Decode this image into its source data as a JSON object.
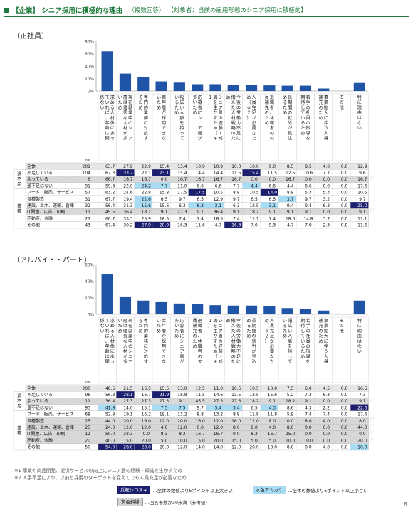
{
  "title": {
    "main": "【企業】 シニア採用に積極的な理由",
    "qtype": "（複数回答）",
    "target": "【対象者：当該の雇用形態のシニア採用に積極的】"
  },
  "sections": [
    {
      "label": "（正社員）"
    },
    {
      "label": "（アルバイト・パート）"
    }
  ],
  "chart_data": [
    {
      "type": "bar",
      "section": "（正社員）",
      "ylim": [
        0,
        80
      ],
      "yticks": [
        "80%",
        "60%",
        "40%",
        "20%",
        "0%"
      ],
      "n_label": "n=",
      "categories": [
        "求める人材像にあっていれば、年齢は関係ない",
        "現在就業中のシニア層は優秀な人材が多いため",
        "専門的業務に対応するため",
        "若年層が採用できないため",
        "幅広い人脈を持っているため",
        "応募者にシニア層が多いため",
        "シニア層の経験・知識を生かすため（※１）",
        "今後の労働力不足に備えた人材戦略のため",
        "人員充足が必要なため（※２）",
        "退職者、休職者の欠員補充のため",
        "長期間の就労が見込めるため",
        "若手の社員の指導を期待しているため",
        "事業拡大に伴う人員補充のため",
        "その他",
        "特に理由はない"
      ],
      "rows": [
        {
          "group": "",
          "label": "全体",
          "n": "201",
          "values": [
            "63.7",
            "27.9",
            "22.9",
            "15.4",
            "13.4",
            "10.9",
            "10.9",
            "10.0",
            "10.0",
            "9.0",
            "8.5",
            "8.5",
            "4.0",
            "0.0",
            "12.9"
          ]
        },
        {
          "group": "過不足",
          "label": "不足している",
          "n": "104",
          "values": [
            "67.3",
            "33.7",
            "22.1",
            "23.1",
            "15.4",
            "14.4",
            "14.4",
            "11.5",
            "15.4",
            "11.5",
            "12.5",
            "10.6",
            "7.7",
            "0.0",
            "9.6"
          ]
        },
        {
          "group": "過不足",
          "label": "余っている",
          "n": "6",
          "values": [
            "66.7",
            "16.7",
            "16.7",
            "0.0",
            "16.7",
            "16.7",
            "16.7",
            "16.7",
            "0.0",
            "0.0",
            "16.7",
            "0.0",
            "0.0",
            "0.0",
            "16.7"
          ]
        },
        {
          "group": "過不足",
          "label": "過不足はない",
          "n": "91",
          "values": [
            "59.3",
            "22.0",
            "24.2",
            "7.7",
            "11.0",
            "6.6",
            "6.6",
            "7.7",
            "4.4",
            "6.6",
            "4.4",
            "6.6",
            "0.0",
            "0.0",
            "17.6"
          ]
        },
        {
          "group": "業種",
          "label": "フード、販売、サービス",
          "n": "57",
          "values": [
            "63.2",
            "24.6",
            "22.8",
            "15.8",
            "17.5",
            "17.5",
            "10.5",
            "8.8",
            "10.5",
            "14.0",
            "8.8",
            "5.3",
            "5.3",
            "0.0",
            "10.5"
          ]
        },
        {
          "group": "業種",
          "label": "各種製造",
          "n": "31",
          "values": [
            "67.7",
            "19.4",
            "22.6",
            "6.5",
            "9.7",
            "6.5",
            "12.9",
            "9.7",
            "6.5",
            "6.5",
            "3.7",
            "9.7",
            "3.2",
            "0.0",
            "9.7"
          ]
        },
        {
          "group": "業種",
          "label": "建設、土木、運輸、倉庫",
          "n": "32",
          "values": [
            "56.4",
            "31.3",
            "15.6",
            "15.6",
            "6.3",
            "6.3",
            "3.1",
            "6.3",
            "12.5",
            "3.1",
            "9.4",
            "9.4",
            "6.3",
            "0.0",
            "25.0"
          ]
        },
        {
          "group": "業種",
          "label": "IT関連、広告、印刷",
          "n": "11",
          "values": [
            "45.5",
            "36.4",
            "18.2",
            "9.1",
            "27.3",
            "9.1",
            "36.4",
            "9.1",
            "18.2",
            "9.1",
            "9.1",
            "9.1",
            "0.0",
            "0.0",
            "9.1"
          ]
        },
        {
          "group": "業種",
          "label": "不動産、金融",
          "n": "27",
          "values": [
            "66.7",
            "33.3",
            "25.9",
            "18.5",
            "7.4",
            "7.4",
            "18.5",
            "7.4",
            "11.1",
            "7.4",
            "18.5",
            "14.8",
            "3.7",
            "0.0",
            "11.1"
          ]
        },
        {
          "group": "業種",
          "label": "その他",
          "n": "43",
          "values": [
            "67.4",
            "30.2",
            "27.9",
            "20.9",
            "16.3",
            "11.6",
            "4.7",
            "16.3",
            "7.0",
            "9.3",
            "4.7",
            "7.0",
            "2.3",
            "0.0",
            "11.6"
          ]
        }
      ],
      "highlights": {
        "dark": [
          [
            1,
            1
          ],
          [
            1,
            3
          ],
          [
            1,
            8
          ],
          [
            4,
            5
          ],
          [
            4,
            9
          ],
          [
            6,
            14
          ],
          [
            9,
            2
          ],
          [
            9,
            3
          ],
          [
            9,
            7
          ]
        ],
        "light": [
          [
            3,
            2
          ],
          [
            3,
            3
          ],
          [
            3,
            8
          ],
          [
            5,
            2
          ],
          [
            5,
            10
          ],
          [
            6,
            2
          ],
          [
            6,
            5
          ],
          [
            6,
            6
          ],
          [
            6,
            9
          ]
        ],
        "gray": [
          2,
          7
        ]
      }
    },
    {
      "type": "bar",
      "section": "（アルバイト・パート）",
      "ylim": [
        0,
        60
      ],
      "yticks": [
        "60%",
        "40%",
        "20%",
        "0%"
      ],
      "n_label": "n=",
      "categories": [
        "求める人材像にあっていれば、年齢は関係ない",
        "現在就業中のシニア層は優秀な人材が多いため",
        "専門的業務に対応するため",
        "若年層が採用できないため",
        "応募者にシニア層が多いため",
        "退職者、休職者の欠員補充のため",
        "シニア層の経験・知識を生かすため（※１）",
        "今後の労働力不足に備えた人材戦略のため",
        "長期間の就労が見込めるため",
        "人員充足が必要なため（※２）",
        "幅広い人脈を持っているため",
        "若手の社員の指導を期待しているため",
        "事業拡大に伴う人員補充のため",
        "その他",
        "特に理由はない"
      ],
      "rows": [
        {
          "group": "",
          "label": "全体",
          "n": "200",
          "values": [
            "48.5",
            "21.5",
            "16.5",
            "15.5",
            "13.0",
            "12.5",
            "11.0",
            "10.5",
            "10.5",
            "10.0",
            "7.5",
            "6.0",
            "4.5",
            "0.0",
            "16.5"
          ]
        },
        {
          "group": "過不足",
          "label": "不足している",
          "n": "96",
          "values": [
            "56.3",
            "28.1",
            "16.7",
            "21.9",
            "18.8",
            "11.5",
            "14.6",
            "13.5",
            "13.5",
            "15.6",
            "5.2",
            "7.3",
            "6.3",
            "0.0",
            "7.3"
          ]
        },
        {
          "group": "過不足",
          "label": "余っている",
          "n": "11",
          "values": [
            "36.4",
            "27.3",
            "27.3",
            "27.3",
            "9.1",
            "45.5",
            "27.3",
            "27.3",
            "18.2",
            "9.1",
            "18.2",
            "9.1",
            "0.0",
            "0.0",
            "9.1"
          ]
        },
        {
          "group": "過不足",
          "label": "過不足はない",
          "n": "93",
          "values": [
            "41.9",
            "14.0",
            "15.1",
            "7.5",
            "7.5",
            "9.7",
            "5.4",
            "5.4",
            "6.5",
            "4.3",
            "8.6",
            "4.3",
            "2.2",
            "0.0",
            "22.6"
          ]
        },
        {
          "group": "業種",
          "label": "フード、販売、サービス",
          "n": "68",
          "values": [
            "52.9",
            "19.1",
            "16.2",
            "19.1",
            "13.2",
            "8.8",
            "13.2",
            "8.8",
            "11.8",
            "11.8",
            "5.9",
            "7.4",
            "7.4",
            "0.0",
            "17.6"
          ]
        },
        {
          "group": "業種",
          "label": "各種製造",
          "n": "25",
          "values": [
            "44.0",
            "20.0",
            "16.0",
            "12.0",
            "20.0",
            "16.0",
            "12.0",
            "16.0",
            "12.0",
            "8.0",
            "0.0",
            "8.0",
            "4.0",
            "0.0",
            "8.0"
          ]
        },
        {
          "group": "業種",
          "label": "建設、土木、運輸、倉庫",
          "n": "25",
          "values": [
            "24.0",
            "12.0",
            "12.0",
            "4.0",
            "12.0",
            "0.0",
            "12.0",
            "8.0",
            "8.0",
            "4.0",
            "8.0",
            "0.0",
            "0.0",
            "0.0",
            "44.0"
          ]
        },
        {
          "group": "業種",
          "label": "IT関連、広告、印刷",
          "n": "12",
          "values": [
            "50.0",
            "33.3",
            "0.0",
            "8.3",
            "8.3",
            "16.7",
            "16.7",
            "0.0",
            "8.3",
            "16.7",
            "25.0",
            "0.0",
            "0.0",
            "0.0",
            "0.0"
          ]
        },
        {
          "group": "業種",
          "label": "不動産、金融",
          "n": "20",
          "values": [
            "40.0",
            "15.0",
            "20.0",
            "5.0",
            "10.0",
            "15.0",
            "20.0",
            "15.0",
            "5.0",
            "5.0",
            "10.0",
            "10.0",
            "0.0",
            "0.0",
            "20.0"
          ]
        },
        {
          "group": "業種",
          "label": "その他",
          "n": "50",
          "values": [
            "54.0",
            "28.0",
            "28.0",
            "20.0",
            "12.0",
            "14.0",
            "14.0",
            "12.0",
            "20.0",
            "10.0",
            "8.0",
            "0.0",
            "4.0",
            "0.0",
            "10.0"
          ]
        }
      ],
      "highlights": {
        "dark": [
          [
            1,
            1
          ],
          [
            1,
            3
          ],
          [
            3,
            14
          ],
          [
            9,
            0
          ],
          [
            9,
            1
          ],
          [
            9,
            2
          ]
        ],
        "light": [
          [
            3,
            0
          ],
          [
            3,
            3
          ],
          [
            3,
            4
          ],
          [
            3,
            6
          ],
          [
            3,
            7
          ],
          [
            3,
            9
          ],
          [
            9,
            14
          ]
        ],
        "gray": [
          2,
          5,
          6,
          7,
          8
        ]
      }
    }
  ],
  "footnotes": [
    "※1 事業や商品開発、提供サービスの向上にシニア層の経験・知識を生かすため",
    "※2 人手不足により、以前と採用のターゲットを変えてでも人員充足が必要なため"
  ],
  "legend": {
    "dark_swatch": "反転シロヌキ",
    "dark_text": "…全体の数値より5ポイント以上大きい",
    "light_swatch": "水色アミカケ",
    "light_text": "…全体の数値より5ポイント以上小さい",
    "gray_swatch": "灰色斜線",
    "gray_text": "…回答者数が30未満（参考値）"
  },
  "colors": {
    "bar": "#2054a6",
    "dark": "#1b1f6e",
    "light": "#a8dcf5",
    "accent": "#1e7a3c",
    "header": "#e6e6e6"
  },
  "page_number": "8"
}
